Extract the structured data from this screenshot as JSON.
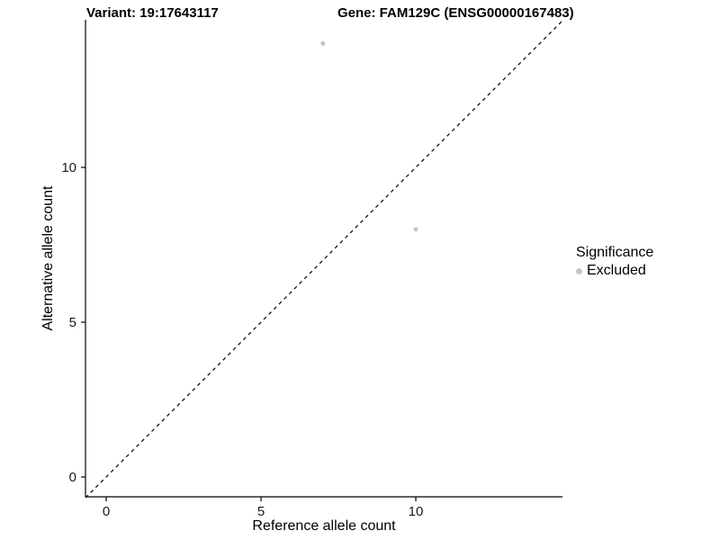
{
  "header": {
    "variant_title": "Variant: 19:17643117",
    "gene_title": "Gene: FAM129C (ENSG00000167483)"
  },
  "chart_data": {
    "type": "scatter",
    "title": "Variant: 19:17643117    Gene: FAM129C (ENSG00000167483)",
    "xlabel": "Reference allele count",
    "ylabel": "Alternative allele count",
    "points": [
      {
        "x": 7,
        "y": 14
      },
      {
        "x": 10,
        "y": 8
      }
    ],
    "point_color": "#c6c6c6",
    "x_ticks": [
      0,
      5,
      10
    ],
    "y_ticks": [
      0,
      5,
      10
    ],
    "xlim": [
      -0.65,
      14.72
    ],
    "ylim": [
      -0.65,
      14.72
    ],
    "grid": false,
    "identity_line": {
      "style": "dashed",
      "color": "#000000",
      "slope": 1,
      "intercept": 0
    },
    "legend": {
      "position": "right",
      "title": "Significance",
      "items": [
        {
          "label": "Excluded",
          "color": "#c6c6c6"
        }
      ]
    }
  }
}
